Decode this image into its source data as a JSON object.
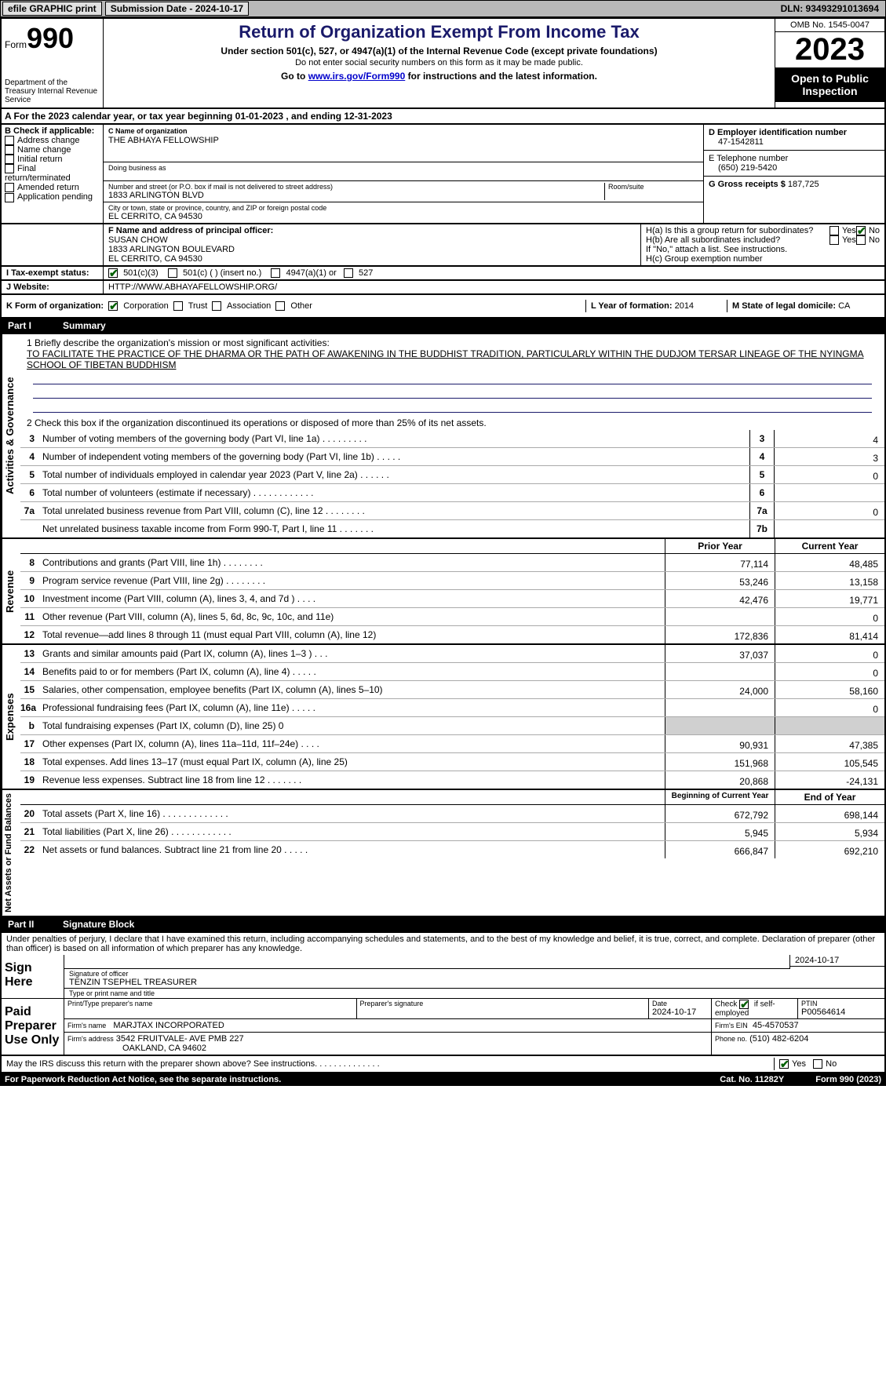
{
  "topbar": {
    "efile": "efile GRAPHIC print",
    "submission": "Submission Date - 2024-10-17",
    "dln": "DLN: 93493291013694"
  },
  "header": {
    "form_word": "Form",
    "form_num": "990",
    "dept": "Department of the Treasury Internal Revenue Service",
    "title": "Return of Organization Exempt From Income Tax",
    "subtitle": "Under section 501(c), 527, or 4947(a)(1) of the Internal Revenue Code (except private foundations)",
    "warn": "Do not enter social security numbers on this form as it may be made public.",
    "goto_pre": "Go to ",
    "goto_link": "www.irs.gov/Form990",
    "goto_post": " for instructions and the latest information.",
    "omb": "OMB No. 1545-0047",
    "year": "2023",
    "public": "Open to Public Inspection"
  },
  "lineA": "A  For the 2023 calendar year, or tax year beginning 01-01-2023    , and ending 12-31-2023",
  "boxB": {
    "label": "B Check if applicable:",
    "opts": [
      "Address change",
      "Name change",
      "Initial return",
      "Final return/terminated",
      "Amended return",
      "Application pending"
    ]
  },
  "boxC": {
    "name_label": "C Name of organization",
    "name": "THE ABHAYA FELLOWSHIP",
    "dba_label": "Doing business as",
    "addr_label": "Number and street (or P.O. box if mail is not delivered to street address)",
    "addr": "1833 ARLINGTON BLVD",
    "room_label": "Room/suite",
    "city_label": "City or town, state or province, country, and ZIP or foreign postal code",
    "city": "EL CERRITO, CA  94530"
  },
  "boxD": {
    "label": "D Employer identification number",
    "val": "47-1542811"
  },
  "boxE": {
    "label": "E Telephone number",
    "val": "(650) 219-5420"
  },
  "boxG": {
    "label": "G Gross receipts $",
    "val": "187,725"
  },
  "boxF": {
    "label": "F Name and address of principal officer:",
    "name": "SUSAN CHOW",
    "addr1": "1833 ARLINGTON BOULEVARD",
    "addr2": "EL CERRITO, CA  94530"
  },
  "boxH": {
    "a": "H(a)  Is this a group return for subordinates?",
    "b": "H(b)  Are all subordinates included?",
    "note": "If \"No,\" attach a list. See instructions.",
    "c": "H(c)  Group exemption number"
  },
  "yes": "Yes",
  "no": "No",
  "lineI": {
    "label": "I     Tax-exempt status:",
    "o1": "501(c)(3)",
    "o2": "501(c) (  ) (insert no.)",
    "o3": "4947(a)(1) or",
    "o4": "527"
  },
  "lineJ": {
    "label": "J    Website:",
    "val": "HTTP://WWW.ABHAYAFELLOWSHIP.ORG/"
  },
  "lineK": {
    "label": "K Form of organization:",
    "o1": "Corporation",
    "o2": "Trust",
    "o3": "Association",
    "o4": "Other"
  },
  "lineL": {
    "label": "L Year of formation:",
    "val": "2014"
  },
  "lineM": {
    "label": "M State of legal domicile:",
    "val": "CA"
  },
  "partI": {
    "label": "Part I",
    "title": "Summary"
  },
  "summary": {
    "q1_label": "1   Briefly describe the organization's mission or most significant activities:",
    "q1_text": "TO FACILITATE THE PRACTICE OF THE DHARMA OR THE PATH OF AWAKENING IN THE BUDDHIST TRADITION, PARTICULARLY WITHIN THE DUDJOM TERSAR LINEAGE OF THE NYINGMA SCHOOL OF TIBETAN BUDDHISM",
    "q2": "2   Check this box       if the organization discontinued its operations or disposed of more than 25% of its net assets.",
    "rows_gov": [
      {
        "n": "3",
        "desc": "Number of voting members of the governing body (Part VI, line 1a)   .    .    .    .    .    .    .    .    .",
        "box": "3",
        "val": "4"
      },
      {
        "n": "4",
        "desc": "Number of independent voting members of the governing body (Part VI, line 1b)   .    .    .    .    .",
        "box": "4",
        "val": "3"
      },
      {
        "n": "5",
        "desc": "Total number of individuals employed in calendar year 2023 (Part V, line 2a)   .    .    .    .    .    .",
        "box": "5",
        "val": "0"
      },
      {
        "n": "6",
        "desc": "Total number of volunteers (estimate if necessary)    .    .    .    .    .    .    .    .    .    .    .    .",
        "box": "6",
        "val": ""
      },
      {
        "n": "7a",
        "desc": "Total unrelated business revenue from Part VIII, column (C), line 12   .    .    .    .    .    .    .    .",
        "box": "7a",
        "val": "0"
      },
      {
        "n": "",
        "desc": "Net unrelated business taxable income from Form 990-T, Part I, line 11   .    .    .    .    .    .    .",
        "box": "7b",
        "val": ""
      }
    ],
    "h_prior": "Prior Year",
    "h_current": "Current Year",
    "side_gov": "Activities & Governance",
    "side_rev": "Revenue",
    "side_exp": "Expenses",
    "side_net": "Net Assets or Fund Balances",
    "rows_rev": [
      {
        "n": "8",
        "desc": "Contributions and grants (Part VIII, line 1h)   .    .    .    .    .    .    .    .",
        "p": "77,114",
        "c": "48,485"
      },
      {
        "n": "9",
        "desc": "Program service revenue (Part VIII, line 2g)   .    .    .    .    .    .    .    .",
        "p": "53,246",
        "c": "13,158"
      },
      {
        "n": "10",
        "desc": "Investment income (Part VIII, column (A), lines 3, 4, and 7d )    .    .    .    .",
        "p": "42,476",
        "c": "19,771"
      },
      {
        "n": "11",
        "desc": "Other revenue (Part VIII, column (A), lines 5, 6d, 8c, 9c, 10c, and 11e)",
        "p": "",
        "c": "0"
      },
      {
        "n": "12",
        "desc": "Total revenue—add lines 8 through 11 (must equal Part VIII, column (A), line 12)",
        "p": "172,836",
        "c": "81,414"
      }
    ],
    "rows_exp": [
      {
        "n": "13",
        "desc": "Grants and similar amounts paid (Part IX, column (A), lines 1–3 )   .   .   .",
        "p": "37,037",
        "c": "0"
      },
      {
        "n": "14",
        "desc": "Benefits paid to or for members (Part IX, column (A), line 4)   .    .    .    .    .",
        "p": "",
        "c": "0"
      },
      {
        "n": "15",
        "desc": "Salaries, other compensation, employee benefits (Part IX, column (A), lines 5–10)",
        "p": "24,000",
        "c": "58,160"
      },
      {
        "n": "16a",
        "desc": "Professional fundraising fees (Part IX, column (A), line 11e)    .    .    .    .    .",
        "p": "",
        "c": "0"
      },
      {
        "n": "b",
        "desc": "Total fundraising expenses (Part IX, column (D), line 25) 0",
        "p": "GREY",
        "c": "GREY"
      },
      {
        "n": "17",
        "desc": "Other expenses (Part IX, column (A), lines 11a–11d, 11f–24e)   .    .    .    .",
        "p": "90,931",
        "c": "47,385"
      },
      {
        "n": "18",
        "desc": "Total expenses. Add lines 13–17 (must equal Part IX, column (A), line 25)",
        "p": "151,968",
        "c": "105,545"
      },
      {
        "n": "19",
        "desc": "Revenue less expenses. Subtract line 18 from line 12   .    .    .    .    .    .    .",
        "p": "20,868",
        "c": "-24,131"
      }
    ],
    "h_begin": "Beginning of Current Year",
    "h_end": "End of Year",
    "rows_net": [
      {
        "n": "20",
        "desc": "Total assets (Part X, line 16)   .    .    .    .    .    .    .    .    .    .    .    .    .",
        "p": "672,792",
        "c": "698,144"
      },
      {
        "n": "21",
        "desc": "Total liabilities (Part X, line 26)   .    .    .    .    .    .    .    .    .    .    .    .",
        "p": "5,945",
        "c": "5,934"
      },
      {
        "n": "22",
        "desc": "Net assets or fund balances. Subtract line 21 from line 20   .    .    .    .    .",
        "p": "666,847",
        "c": "692,210"
      }
    ]
  },
  "partII": {
    "label": "Part II",
    "title": "Signature Block"
  },
  "perjury": "Under penalties of perjury, I declare that I have examined this return, including accompanying schedules and statements, and to the best of my knowledge and belief, it is true, correct, and complete. Declaration of preparer (other than officer) is based on all information of which preparer has any knowledge.",
  "sign": {
    "here": "Sign Here",
    "sig_officer": "Signature of officer",
    "officer_name": "TENZIN TSEPHEL  TREASURER",
    "type_name": "Type or print name and title",
    "date": "Date",
    "date_val": "2024-10-17"
  },
  "paid": {
    "label": "Paid Preparer Use Only",
    "print_name": "Print/Type preparer's name",
    "prep_sig": "Preparer's signature",
    "date": "Date",
    "date_val": "2024-10-17",
    "check_self": "Check         if self-employed",
    "ptin": "PTIN",
    "ptin_val": "P00564614",
    "firm_name": "Firm's name",
    "firm_name_val": "MARJTAX INCORPORATED",
    "firm_ein": "Firm's EIN",
    "firm_ein_val": "45-4570537",
    "firm_addr": "Firm's address",
    "firm_addr_val1": "3542 FRUITVALE- AVE PMB 227",
    "firm_addr_val2": "OAKLAND, CA  94602",
    "phone": "Phone no.",
    "phone_val": "(510) 482-6204"
  },
  "discuss": "May the IRS discuss this return with the preparer shown above? See instructions.   .    .    .    .    .    .    .    .    .    .    .    .    .",
  "footer": {
    "pra": "For Paperwork Reduction Act Notice, see the separate instructions.",
    "cat": "Cat. No. 11282Y",
    "form": "Form 990 (2023)"
  },
  "colors": {
    "bg": "#ffffff",
    "border": "#000000",
    "link": "#0000cc",
    "title": "#1a1a6a",
    "check": "#006000",
    "grey": "#d0d0d0"
  }
}
